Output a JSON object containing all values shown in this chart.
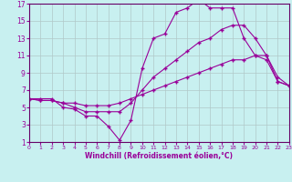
{
  "xlabel": "Windchill (Refroidissement éolien,°C)",
  "bg_color": "#c8f0f0",
  "line_color": "#990099",
  "grid_color": "#b0c8c8",
  "spine_color": "#660066",
  "xmin": 0,
  "xmax": 23,
  "ymin": 1,
  "ymax": 17,
  "yticks": [
    1,
    3,
    5,
    7,
    9,
    11,
    13,
    15,
    17
  ],
  "xticks": [
    0,
    1,
    2,
    3,
    4,
    5,
    6,
    7,
    8,
    9,
    10,
    11,
    12,
    13,
    14,
    15,
    16,
    17,
    18,
    19,
    20,
    21,
    22,
    23
  ],
  "line1_x": [
    0,
    1,
    2,
    3,
    4,
    5,
    6,
    7,
    8,
    9,
    10,
    11,
    12,
    13,
    14,
    15,
    16,
    17,
    18,
    19,
    20,
    21,
    22,
    23
  ],
  "line1_y": [
    6,
    6,
    6,
    5,
    4.8,
    4,
    4,
    2.8,
    1.2,
    3.5,
    9.5,
    13,
    13.5,
    16,
    16.5,
    17.5,
    16.5,
    16.5,
    16.5,
    13,
    11,
    11,
    8.5,
    7.5
  ],
  "line2_x": [
    0,
    1,
    2,
    3,
    4,
    5,
    6,
    7,
    8,
    9,
    10,
    11,
    12,
    13,
    14,
    15,
    16,
    17,
    18,
    19,
    20,
    21,
    22,
    23
  ],
  "line2_y": [
    6,
    5.8,
    5.8,
    5.5,
    5,
    4.5,
    4.5,
    4.5,
    4.5,
    5.5,
    7,
    8.5,
    9.5,
    10.5,
    11.5,
    12.5,
    13,
    14,
    14.5,
    14.5,
    13,
    11,
    8,
    7.5
  ],
  "line3_x": [
    0,
    1,
    2,
    3,
    4,
    5,
    6,
    7,
    8,
    9,
    10,
    11,
    12,
    13,
    14,
    15,
    16,
    17,
    18,
    19,
    20,
    21,
    22,
    23
  ],
  "line3_y": [
    6,
    5.8,
    5.8,
    5.5,
    5.5,
    5.2,
    5.2,
    5.2,
    5.5,
    6,
    6.5,
    7,
    7.5,
    8,
    8.5,
    9,
    9.5,
    10,
    10.5,
    10.5,
    11,
    10.5,
    8,
    7.5
  ]
}
